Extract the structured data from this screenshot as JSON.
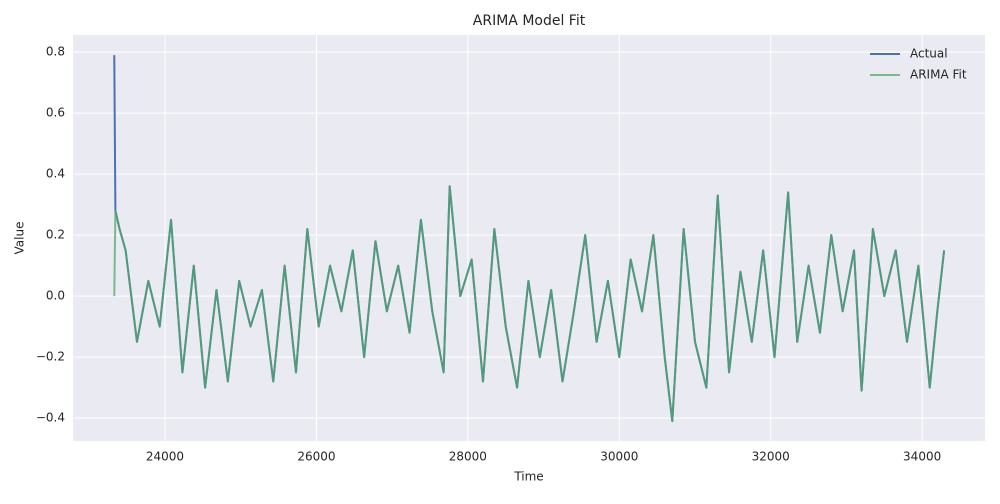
{
  "chart_data": {
    "type": "line",
    "title": "ARIMA Model Fit",
    "xlabel": "Time",
    "ylabel": "Value",
    "x": [
      23330,
      23345,
      23400,
      23480,
      23630,
      23780,
      23930,
      24080,
      24230,
      24380,
      24530,
      24680,
      24830,
      24980,
      25130,
      25280,
      25430,
      25580,
      25730,
      25880,
      26030,
      26180,
      26330,
      26480,
      26630,
      26780,
      26930,
      27080,
      27230,
      27380,
      27530,
      27680,
      27760,
      27900,
      28050,
      28200,
      28350,
      28500,
      28650,
      28800,
      28950,
      29100,
      29250,
      29400,
      29550,
      29700,
      29850,
      30000,
      30150,
      30300,
      30450,
      30600,
      30700,
      30850,
      31000,
      31150,
      31300,
      31450,
      31600,
      31750,
      31900,
      32050,
      32230,
      32350,
      32500,
      32650,
      32800,
      32950,
      33100,
      33200,
      33350,
      33500,
      33650,
      33800,
      33950,
      34100,
      34200,
      34290
    ],
    "series": [
      {
        "name": "Actual",
        "color": "#4c72b0",
        "values": [
          0.79,
          0.28,
          0.22,
          0.15,
          -0.15,
          0.05,
          -0.1,
          0.25,
          -0.25,
          0.1,
          -0.3,
          0.02,
          -0.28,
          0.05,
          -0.1,
          0.02,
          -0.28,
          0.1,
          -0.25,
          0.22,
          -0.1,
          0.1,
          -0.05,
          0.15,
          -0.2,
          0.18,
          -0.05,
          0.1,
          -0.12,
          0.25,
          -0.05,
          -0.25,
          0.36,
          0.0,
          0.12,
          -0.28,
          0.22,
          -0.1,
          -0.3,
          0.05,
          -0.2,
          0.02,
          -0.28,
          -0.05,
          0.2,
          -0.15,
          0.05,
          -0.2,
          0.12,
          -0.05,
          0.2,
          -0.2,
          -0.41,
          0.22,
          -0.15,
          -0.3,
          0.33,
          -0.25,
          0.08,
          -0.15,
          0.15,
          -0.2,
          0.34,
          -0.15,
          0.1,
          -0.12,
          0.2,
          -0.05,
          0.15,
          -0.31,
          0.22,
          0.0,
          0.15,
          -0.15,
          0.1,
          -0.3,
          -0.05,
          0.15
        ]
      },
      {
        "name": "ARIMA Fit",
        "color": "#55a868",
        "values": [
          0,
          0.28,
          0.22,
          0.15,
          -0.15,
          0.05,
          -0.1,
          0.25,
          -0.25,
          0.1,
          -0.3,
          0.02,
          -0.28,
          0.05,
          -0.1,
          0.02,
          -0.28,
          0.1,
          -0.25,
          0.22,
          -0.1,
          0.1,
          -0.05,
          0.15,
          -0.2,
          0.18,
          -0.05,
          0.1,
          -0.12,
          0.25,
          -0.05,
          -0.25,
          0.36,
          0.0,
          0.12,
          -0.28,
          0.22,
          -0.1,
          -0.3,
          0.05,
          -0.2,
          0.02,
          -0.28,
          -0.05,
          0.2,
          -0.15,
          0.05,
          -0.2,
          0.12,
          -0.05,
          0.2,
          -0.2,
          -0.41,
          0.22,
          -0.15,
          -0.3,
          0.33,
          -0.25,
          0.08,
          -0.15,
          0.15,
          -0.2,
          0.34,
          -0.15,
          0.1,
          -0.12,
          0.2,
          -0.05,
          0.15,
          -0.31,
          0.22,
          0.0,
          0.15,
          -0.15,
          0.1,
          -0.3,
          -0.05,
          0.15
        ]
      }
    ],
    "xlim": [
      22785,
      34830
    ],
    "ylim": [
      -0.475,
      0.856
    ],
    "xticks": [
      24000,
      26000,
      28000,
      30000,
      32000,
      34000
    ],
    "yticks": [
      {
        "value": -0.4,
        "label": "−0.4"
      },
      {
        "value": -0.2,
        "label": "−0.2"
      },
      {
        "value": 0,
        "label": "0.0"
      },
      0.2,
      0.4,
      0.6,
      0.8
    ],
    "grid": true,
    "legend": "upper-right"
  }
}
